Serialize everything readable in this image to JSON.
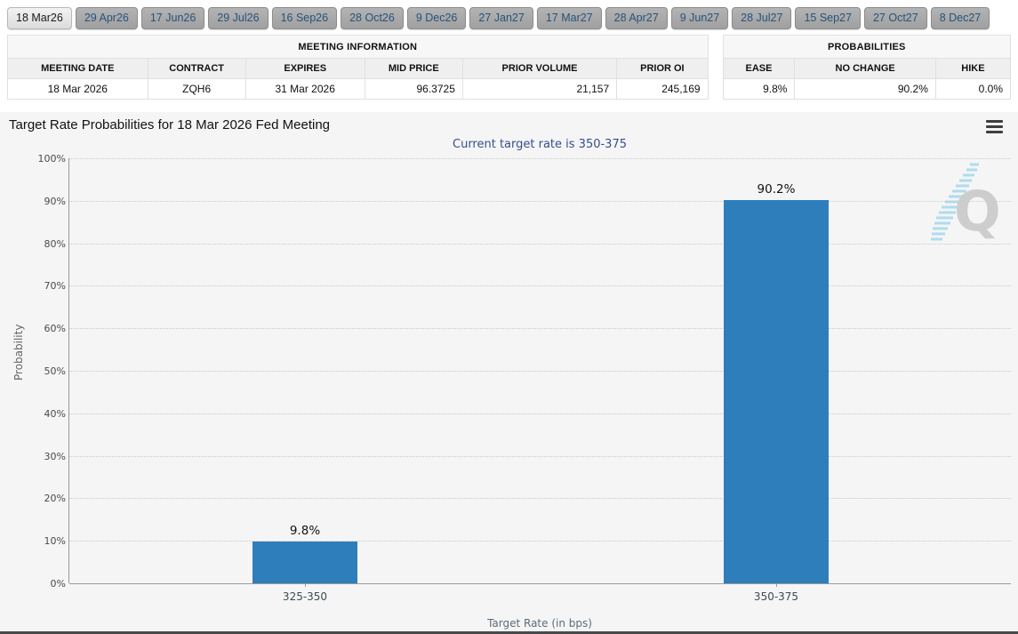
{
  "tabs": {
    "items": [
      {
        "label": "18 Mar26",
        "active": true
      },
      {
        "label": "29 Apr26",
        "active": false
      },
      {
        "label": "17 Jun26",
        "active": false
      },
      {
        "label": "29 Jul26",
        "active": false
      },
      {
        "label": "16 Sep26",
        "active": false
      },
      {
        "label": "28 Oct26",
        "active": false
      },
      {
        "label": "9 Dec26",
        "active": false
      },
      {
        "label": "27 Jan27",
        "active": false
      },
      {
        "label": "17 Mar27",
        "active": false
      },
      {
        "label": "28 Apr27",
        "active": false
      },
      {
        "label": "9 Jun27",
        "active": false
      },
      {
        "label": "28 Jul27",
        "active": false
      },
      {
        "label": "15 Sep27",
        "active": false
      },
      {
        "label": "27 Oct27",
        "active": false
      },
      {
        "label": "8 Dec27",
        "active": false
      }
    ]
  },
  "meeting_information": {
    "title": "MEETING INFORMATION",
    "columns": [
      "MEETING DATE",
      "CONTRACT",
      "EXPIRES",
      "MID PRICE",
      "PRIOR VOLUME",
      "PRIOR OI"
    ],
    "row": {
      "meeting_date": "18 Mar 2026",
      "contract": "ZQH6",
      "expires": "31 Mar 2026",
      "mid_price": "96.3725",
      "prior_volume": "21,157",
      "prior_oi": "245,169"
    }
  },
  "probabilities": {
    "title": "PROBABILITIES",
    "columns": [
      "EASE",
      "NO CHANGE",
      "HIKE"
    ],
    "row": {
      "ease": "9.8%",
      "no_change": "90.2%",
      "hike": "0.0%"
    }
  },
  "chart_header": {
    "title": "Target Rate Probabilities for 18 Mar 2026 Fed Meeting",
    "menu_icon": "hamburger-menu-icon",
    "watermark_letter": "Q"
  },
  "chart_data": {
    "type": "bar",
    "title": "Target Rate Probabilities for 18 Mar 2026 Fed Meeting",
    "subtitle": "Current target rate is 350-375",
    "categories": [
      "325-350",
      "350-375"
    ],
    "values": [
      9.8,
      90.2
    ],
    "value_labels": [
      "9.8%",
      "90.2%"
    ],
    "xlabel": "Target Rate (in bps)",
    "ylabel": "Probability",
    "ylim": [
      0,
      100
    ],
    "ytick_step": 10,
    "ytick_suffix": "%",
    "bar_color": "#2e7ebc",
    "grid": "horizontal-dotted",
    "legend_position": "none"
  }
}
